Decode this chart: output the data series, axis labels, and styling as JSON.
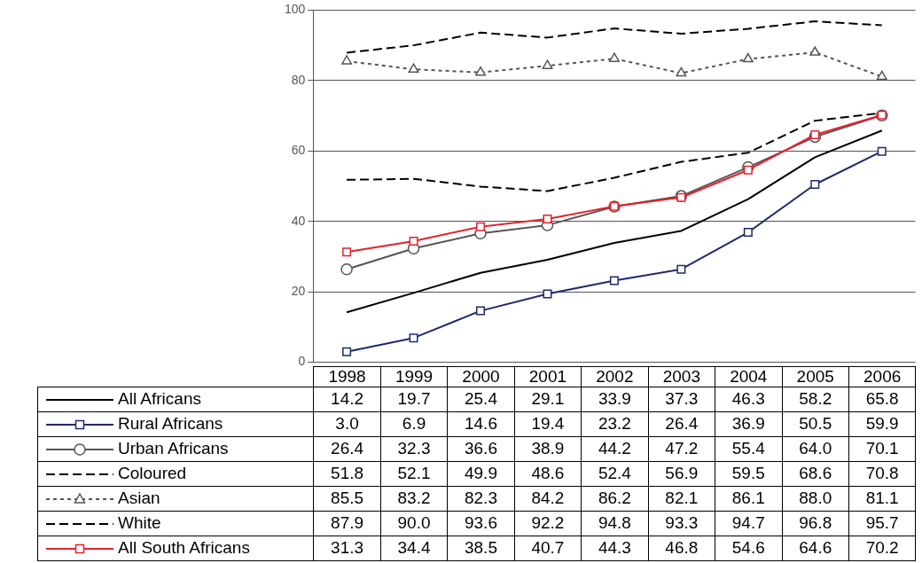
{
  "chart_data": {
    "type": "line",
    "categories": [
      "1998",
      "1999",
      "2000",
      "2001",
      "2002",
      "2003",
      "2004",
      "2005",
      "2006"
    ],
    "ylim": [
      0,
      100
    ],
    "yticks": [
      0,
      20,
      40,
      60,
      80,
      100
    ],
    "grid": "y",
    "legend": "bottom",
    "series": [
      {
        "name": "All Africans",
        "color": "#000000",
        "marker": "none",
        "line_style": "solid",
        "values": [
          14.2,
          19.7,
          25.4,
          29.1,
          33.9,
          37.3,
          46.3,
          58.2,
          65.8
        ],
        "value_labels": [
          "14.2",
          "19.7",
          "25.4",
          "29.1",
          "33.9",
          "37.3",
          "46.3",
          "58.2",
          "65.8"
        ]
      },
      {
        "name": "Rural Africans",
        "color": "#1f2a6b",
        "marker": "square",
        "line_style": "solid",
        "values": [
          3.0,
          6.9,
          14.6,
          19.4,
          23.2,
          26.4,
          36.9,
          50.5,
          59.9
        ],
        "value_labels": [
          "3.0",
          "6.9",
          "14.6",
          "19.4",
          "23.2",
          "26.4",
          "36.9",
          "50.5",
          "59.9"
        ]
      },
      {
        "name": "Urban Africans",
        "color": "#555555",
        "marker": "circle",
        "line_style": "solid",
        "values": [
          26.4,
          32.3,
          36.6,
          38.9,
          44.2,
          47.2,
          55.4,
          64.0,
          70.1
        ],
        "value_labels": [
          "26.4",
          "32.3",
          "36.6",
          "38.9",
          "44.2",
          "47.2",
          "55.4",
          "64.0",
          "70.1"
        ]
      },
      {
        "name": "Coloured",
        "color": "#000000",
        "marker": "none",
        "line_style": "dashed",
        "values": [
          51.8,
          52.1,
          49.9,
          48.6,
          52.4,
          56.9,
          59.5,
          68.6,
          70.8
        ],
        "value_labels": [
          "51.8",
          "52.1",
          "49.9",
          "48.6",
          "52.4",
          "56.9",
          "59.5",
          "68.6",
          "70.8"
        ]
      },
      {
        "name": "Asian",
        "color": "#555555",
        "marker": "triangle",
        "line_style": "dotted",
        "values": [
          85.5,
          83.2,
          82.3,
          84.2,
          86.2,
          82.1,
          86.1,
          88.0,
          81.1
        ],
        "value_labels": [
          "85.5",
          "83.2",
          "82.3",
          "84.2",
          "86.2",
          "82.1",
          "86.1",
          "88.0",
          "81.1"
        ]
      },
      {
        "name": "White",
        "color": "#000000",
        "marker": "none",
        "line_style": "dashed",
        "values": [
          87.9,
          90.0,
          93.6,
          92.2,
          94.8,
          93.3,
          94.7,
          96.8,
          95.7
        ],
        "value_labels": [
          "87.9",
          "90.0",
          "93.6",
          "92.2",
          "94.8",
          "93.3",
          "94.7",
          "96.8",
          "95.7"
        ]
      },
      {
        "name": "All South Africans",
        "color": "#e8202a",
        "marker": "square",
        "line_style": "solid",
        "values": [
          31.3,
          34.4,
          38.5,
          40.7,
          44.3,
          46.8,
          54.6,
          64.6,
          70.2
        ],
        "value_labels": [
          "31.3",
          "34.4",
          "38.5",
          "40.7",
          "44.3",
          "46.8",
          "54.6",
          "64.6",
          "70.2"
        ]
      }
    ]
  }
}
